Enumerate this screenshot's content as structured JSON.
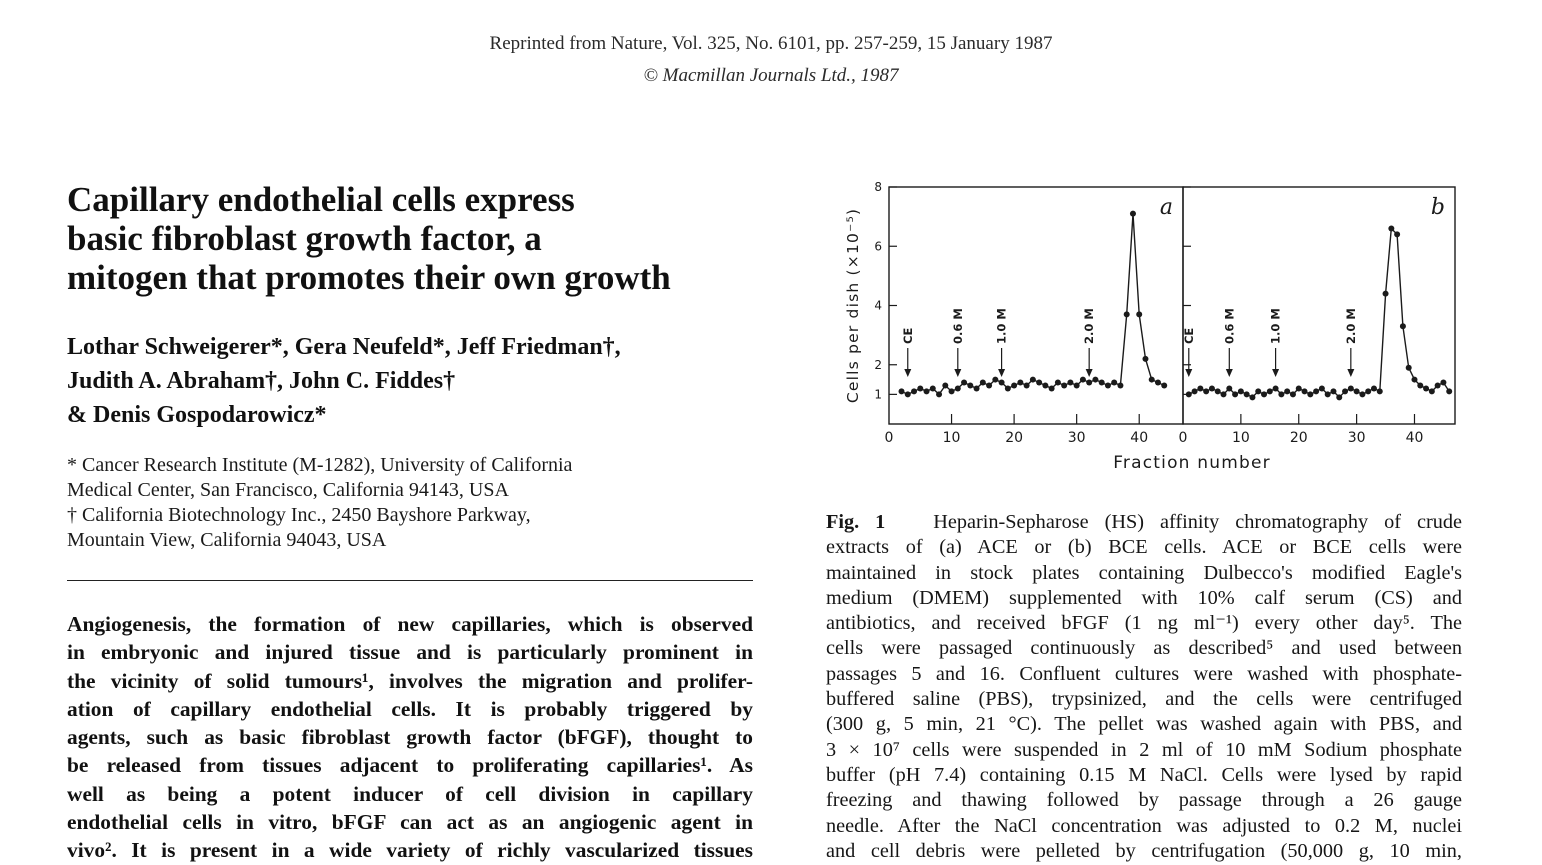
{
  "header": {
    "line1": "Reprinted from Nature, Vol. 325, No. 6101, pp. 257-259, 15 January 1987",
    "line2": "© Macmillan Journals Ltd., 1987"
  },
  "article": {
    "title_lines": [
      "Capillary endothelial cells express",
      "basic fibroblast growth factor, a",
      "mitogen that promotes their own growth"
    ],
    "author_lines": [
      "Lothar Schweigerer*, Gera Neufeld*, Jeff Friedman†,",
      "Judith A. Abraham†, John C. Fiddes†",
      "& Denis Gospodarowicz*"
    ],
    "affiliation_lines": [
      "* Cancer Research Institute (M-1282), University of California",
      "Medical Center, San Francisco, California 94143, USA",
      "† California Biotechnology Inc., 2450 Bayshore Parkway,",
      "Mountain View, California 94043, USA"
    ],
    "abstract_lines": [
      "Angiogenesis, the formation of new capillaries, which is observed",
      "in embryonic and injured tissue and is particularly prominent in",
      "the vicinity of solid tumours¹, involves the migration and prolifer-",
      "ation of capillary endothelial cells. It is probably triggered by",
      "agents, such as basic fibroblast growth factor (bFGF), thought to",
      "be released from tissues adjacent to proliferating capillaries¹. As",
      "well as being a potent inducer of cell division in capillary",
      "endothelial cells in vitro, bFGF can act as an angiogenic agent in",
      "vivo². It is present in a wide variety of richly vascularized tissues"
    ]
  },
  "figure": {
    "caption_label": "Fig. 1",
    "caption_lines": [
      "Heparin-Sepharose (HS) affinity chromatography of crude",
      "extracts of (a) ACE or (b) BCE cells. ACE or BCE cells were",
      "maintained in stock plates containing Dulbecco's modified Eagle's",
      "medium (DMEM) supplemented with 10% calf serum (CS) and",
      "antibiotics, and received bFGF (1 ng ml⁻¹) every other day⁵. The",
      "cells were passaged continuously as described⁵ and used between",
      "passages 5 and 16. Confluent cultures were washed with phosphate-",
      "buffered saline (PBS), trypsinized, and the cells were centrifuged",
      "(300 g, 5 min, 21 °C). The pellet was washed again with PBS, and",
      "3 × 10⁷ cells were suspended in 2 ml of 10 mM Sodium phosphate",
      "buffer (pH 7.4) containing 0.15 M NaCl. Cells were lysed by rapid",
      "freezing and thawing followed by passage through a 26 gauge",
      "needle. After the NaCl concentration was adjusted to 0.2 M, nuclei",
      "and cell debris were pelleted by centrifugation (50,000 g, 10 min,"
    ]
  },
  "chart_data": {
    "type": "line",
    "ylabel": "Cells per dish (×10⁻⁵)",
    "xlabel": "Fraction number",
    "ylim": [
      0,
      8
    ],
    "yticks": [
      "1",
      "2",
      "4",
      "6",
      "8"
    ],
    "grid": false,
    "panels": [
      {
        "label": "a",
        "xlim": [
          0,
          47
        ],
        "xticks": [
          "0",
          "10",
          "20",
          "30",
          "40"
        ],
        "markers": [
          {
            "label": "CE",
            "x": 3
          },
          {
            "label": "0.6 M",
            "x": 11
          },
          {
            "label": "1.0 M",
            "x": 18
          },
          {
            "label": "2.0 M",
            "x": 32
          }
        ],
        "x": [
          2,
          3,
          4,
          5,
          6,
          7,
          8,
          9,
          10,
          11,
          12,
          13,
          14,
          15,
          16,
          17,
          18,
          19,
          20,
          21,
          22,
          23,
          24,
          25,
          26,
          27,
          28,
          29,
          30,
          31,
          32,
          33,
          34,
          35,
          36,
          37,
          38,
          39,
          40,
          41,
          42,
          43,
          44
        ],
        "values": [
          1.1,
          1.0,
          1.1,
          1.2,
          1.1,
          1.2,
          1.0,
          1.3,
          1.1,
          1.2,
          1.4,
          1.3,
          1.2,
          1.4,
          1.3,
          1.5,
          1.4,
          1.2,
          1.3,
          1.4,
          1.3,
          1.5,
          1.4,
          1.3,
          1.2,
          1.4,
          1.3,
          1.4,
          1.3,
          1.5,
          1.4,
          1.5,
          1.4,
          1.3,
          1.4,
          1.3,
          3.7,
          7.1,
          3.7,
          2.2,
          1.5,
          1.4,
          1.3
        ]
      },
      {
        "label": "b",
        "xlim": [
          0,
          47
        ],
        "xticks": [
          "0",
          "10",
          "20",
          "30",
          "40"
        ],
        "markers": [
          {
            "label": "CE",
            "x": 1
          },
          {
            "label": "0.6 M",
            "x": 8
          },
          {
            "label": "1.0 M",
            "x": 16
          },
          {
            "label": "2.0 M",
            "x": 29
          }
        ],
        "x": [
          1,
          2,
          3,
          4,
          5,
          6,
          7,
          8,
          9,
          10,
          11,
          12,
          13,
          14,
          15,
          16,
          17,
          18,
          19,
          20,
          21,
          22,
          23,
          24,
          25,
          26,
          27,
          28,
          29,
          30,
          31,
          32,
          33,
          34,
          35,
          36,
          37,
          38,
          39,
          40,
          41,
          42,
          43,
          44,
          45,
          46
        ],
        "values": [
          1.0,
          1.1,
          1.2,
          1.1,
          1.2,
          1.1,
          1.0,
          1.2,
          1.0,
          1.1,
          1.0,
          0.9,
          1.1,
          1.0,
          1.1,
          1.2,
          1.0,
          1.1,
          1.0,
          1.2,
          1.1,
          1.0,
          1.1,
          1.2,
          1.0,
          1.1,
          0.9,
          1.1,
          1.2,
          1.1,
          1.0,
          1.1,
          1.2,
          1.1,
          4.4,
          6.6,
          6.4,
          3.3,
          1.9,
          1.5,
          1.3,
          1.2,
          1.1,
          1.3,
          1.4,
          1.1
        ]
      }
    ]
  }
}
